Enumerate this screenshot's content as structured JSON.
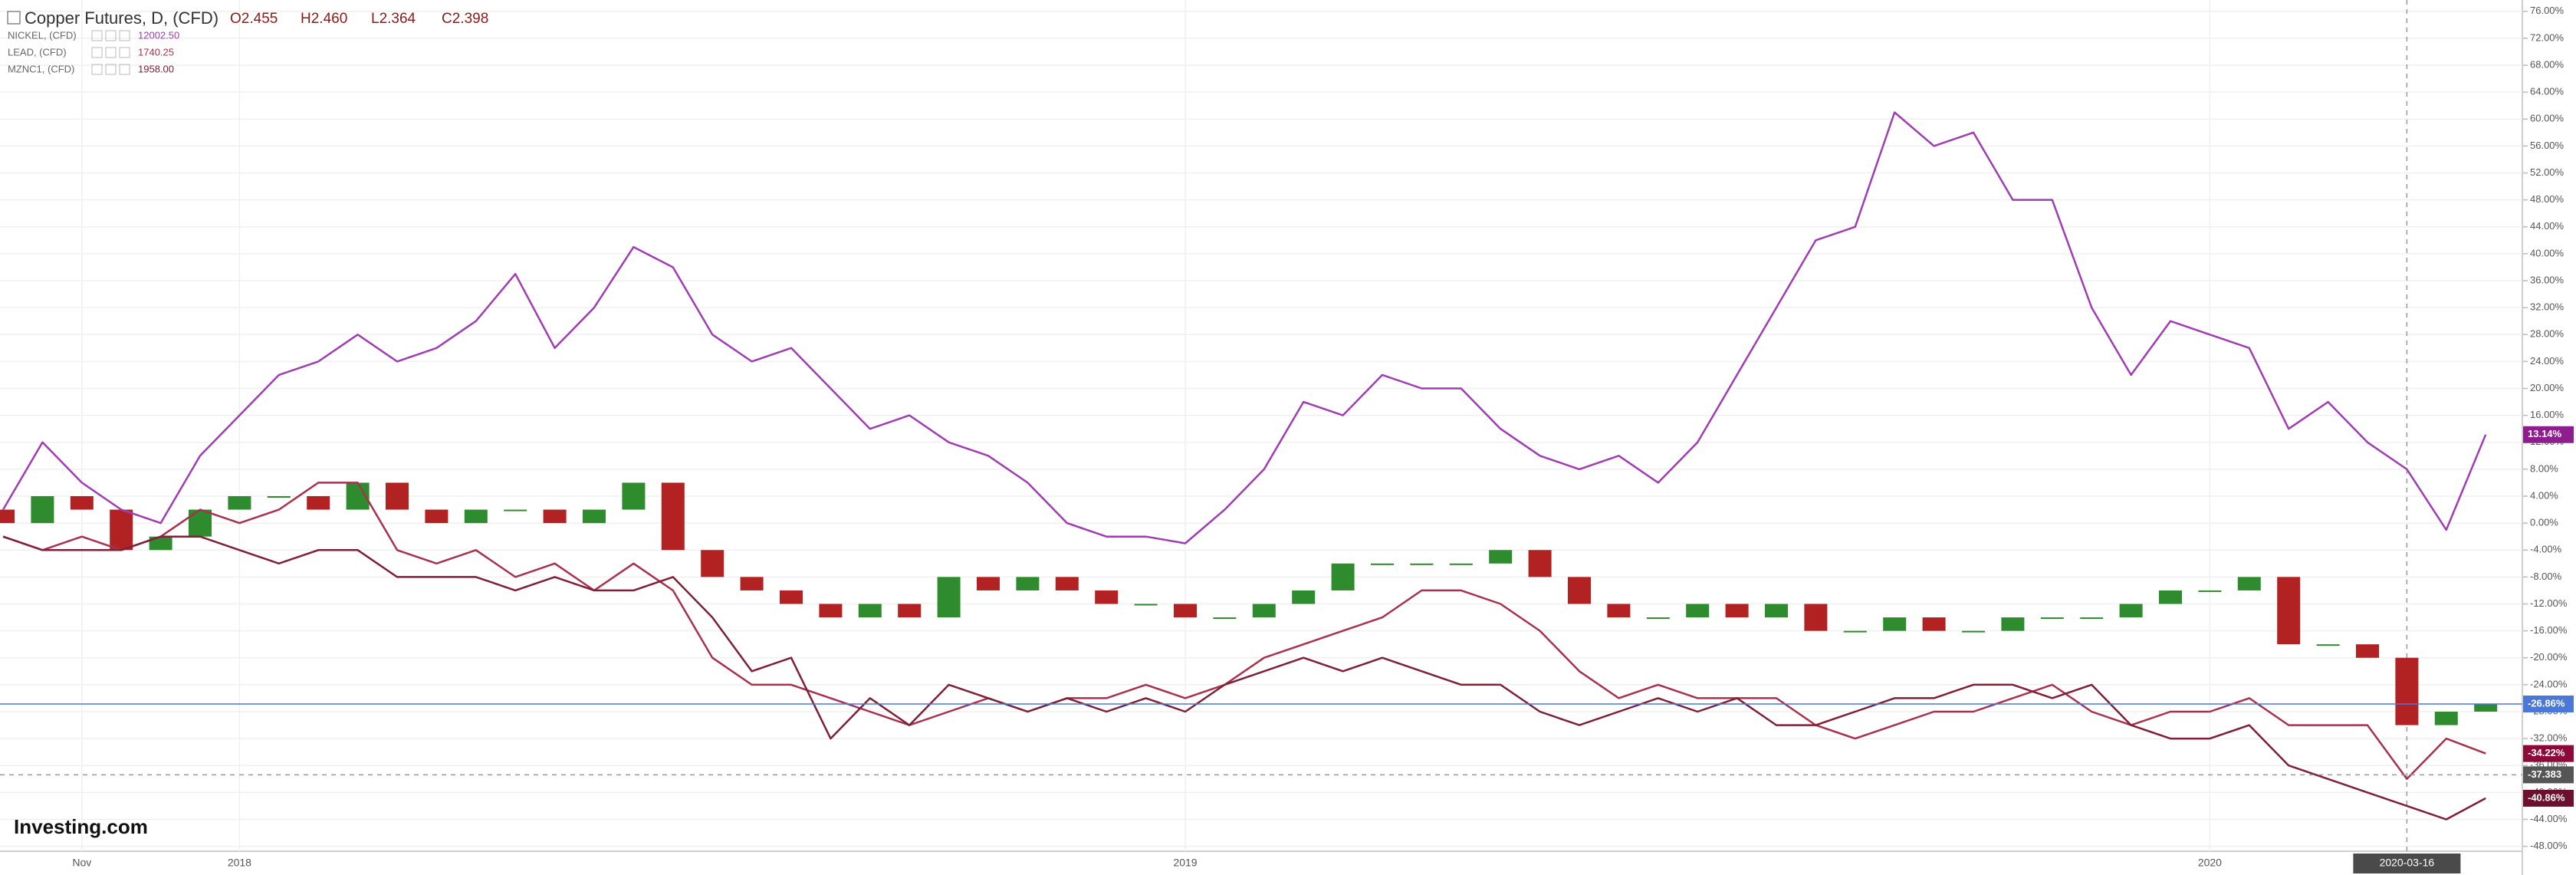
{
  "chart_data": {
    "type": "line",
    "categories": [
      null,
      null,
      "Nov",
      null,
      null,
      null,
      "2018",
      null,
      null,
      null,
      null,
      null,
      null,
      null,
      null,
      null,
      null,
      null,
      null,
      null,
      null,
      null,
      null,
      null,
      null,
      null,
      null,
      null,
      null,
      null,
      "2019",
      null,
      null,
      null,
      null,
      null,
      null,
      null,
      null,
      null,
      null,
      null,
      null,
      null,
      null,
      null,
      null,
      null,
      null,
      null,
      null,
      null,
      null,
      null,
      null,
      null,
      "2020",
      null,
      null,
      null,
      null,
      "2020-03-16",
      null,
      null
    ],
    "crosshair_category": 61,
    "candles": {
      "name": "Copper Futures, D, (CFD)",
      "ohlc_labels": [
        "O2.455",
        "H2.460",
        "L2.364",
        "C2.398"
      ],
      "up_color": "#2e8b2e",
      "down_color": "#b22222",
      "open": [
        2,
        0,
        4,
        2,
        -4,
        -2,
        2,
        4,
        4,
        2,
        6,
        2,
        0,
        2,
        2,
        0,
        2,
        6,
        -4,
        -8,
        -10,
        -12,
        -14,
        -12,
        -14,
        -8,
        -10,
        -8,
        -10,
        -12,
        -12,
        -14,
        -14,
        -12,
        -10,
        -6,
        -6,
        -6,
        -6,
        -4,
        -8,
        -12,
        -14,
        -14,
        -12,
        -14,
        -12,
        -16,
        -16,
        -14,
        -16,
        -16,
        -14,
        -14,
        -14,
        -12,
        -10,
        -10,
        -8,
        -18,
        -18,
        -20,
        -30,
        -28
      ],
      "values": [
        0,
        4,
        2,
        -4,
        -2,
        2,
        4,
        4,
        2,
        6,
        2,
        0,
        2,
        2,
        0,
        2,
        6,
        -4,
        -8,
        -10,
        -12,
        -14,
        -12,
        -14,
        -8,
        -10,
        -8,
        -10,
        -12,
        -12,
        -14,
        -14,
        -12,
        -10,
        -6,
        -6,
        -6,
        -6,
        -4,
        -8,
        -12,
        -14,
        -14,
        -12,
        -14,
        -12,
        -16,
        -16,
        -14,
        -16,
        -16,
        -14,
        -14,
        -14,
        -12,
        -10,
        -10,
        -8,
        -18,
        -18,
        -20,
        -30,
        -28,
        -26.86
      ]
    },
    "series": [
      {
        "name": "NICKEL, (CFD)",
        "last_price": "12002.50",
        "color": "#a03cb4",
        "values": [
          2,
          12,
          6,
          2,
          0,
          10,
          16,
          22,
          24,
          28,
          24,
          26,
          30,
          37,
          26,
          32,
          41,
          38,
          28,
          24,
          26,
          20,
          14,
          16,
          12,
          10,
          6,
          0,
          -2,
          -2,
          -3,
          2,
          8,
          18,
          16,
          22,
          20,
          20,
          14,
          10,
          8,
          10,
          6,
          12,
          22,
          32,
          42,
          44,
          61,
          56,
          58,
          48,
          48,
          32,
          22,
          30,
          28,
          26,
          14,
          18,
          12,
          8,
          -1,
          13.14
        ]
      },
      {
        "name": "LEAD, (CFD)",
        "last_price": "1740.25",
        "color": "#a8324e",
        "values": [
          -2,
          -4,
          -2,
          -4,
          -2,
          2,
          0,
          2,
          6,
          6,
          -4,
          -6,
          -4,
          -8,
          -6,
          -10,
          -6,
          -10,
          -20,
          -24,
          -24,
          -26,
          -28,
          -30,
          -28,
          -26,
          -28,
          -26,
          -26,
          -24,
          -26,
          -24,
          -20,
          -18,
          -16,
          -14,
          -10,
          -10,
          -12,
          -16,
          -22,
          -26,
          -24,
          -26,
          -26,
          -26,
          -30,
          -32,
          -30,
          -28,
          -28,
          -26,
          -24,
          -28,
          -30,
          -28,
          -28,
          -26,
          -30,
          -30,
          -30,
          -38,
          -32,
          -34.22
        ]
      },
      {
        "name": "MZNC1, (CFD)",
        "last_price": "1958.00",
        "color": "#7d2038",
        "values": [
          -2,
          -4,
          -4,
          -4,
          -2,
          -2,
          -4,
          -6,
          -4,
          -4,
          -8,
          -8,
          -8,
          -10,
          -8,
          -10,
          -10,
          -8,
          -14,
          -22,
          -20,
          -32,
          -26,
          -30,
          -24,
          -26,
          -28,
          -26,
          -28,
          -26,
          -28,
          -24,
          -22,
          -20,
          -22,
          -20,
          -22,
          -24,
          -24,
          -28,
          -30,
          -28,
          -26,
          -28,
          -26,
          -30,
          -30,
          -28,
          -26,
          -26,
          -24,
          -24,
          -26,
          -24,
          -30,
          -32,
          -32,
          -30,
          -36,
          -38,
          -40,
          -42,
          -44,
          -40.86
        ]
      }
    ],
    "price_marks": [
      {
        "value": 13.14,
        "label": "13.14%",
        "color": "#8e1e8e"
      },
      {
        "value": -26.86,
        "label": "-26.86%",
        "color": "#4a78d8"
      },
      {
        "value": -34.22,
        "label": "-34.22%",
        "color": "#8b0a3a"
      },
      {
        "value": -37.383,
        "label": "-37.383",
        "color": "#555555"
      },
      {
        "value": -40.86,
        "label": "-40.86%",
        "color": "#6d1030"
      }
    ],
    "ylim": [
      -48.5,
      77
    ],
    "yticks": [
      {
        "value": 76,
        "label": "76.00%"
      },
      {
        "value": 72,
        "label": "72.00%"
      },
      {
        "value": 68,
        "label": "68.00%"
      },
      {
        "value": 64,
        "label": "64.00%"
      },
      {
        "value": 60,
        "label": "60.00%"
      },
      {
        "value": 56,
        "label": "56.00%"
      },
      {
        "value": 52,
        "label": "52.00%"
      },
      {
        "value": 48,
        "label": "48.00%"
      },
      {
        "value": 44,
        "label": "44.00%"
      },
      {
        "value": 40,
        "label": "40.00%"
      },
      {
        "value": 36,
        "label": "36.00%"
      },
      {
        "value": 32,
        "label": "32.00%"
      },
      {
        "value": 28,
        "label": "28.00%"
      },
      {
        "value": 24,
        "label": "24.00%"
      },
      {
        "value": 20,
        "label": "20.00%"
      },
      {
        "value": 16,
        "label": "16.00%"
      },
      {
        "value": 12,
        "label": "12.00%"
      },
      {
        "value": 8,
        "label": "8.00%"
      },
      {
        "value": 4,
        "label": "4.00%"
      },
      {
        "value": 0,
        "label": "0.00%"
      },
      {
        "value": -4,
        "label": "-4.00%"
      },
      {
        "value": -8,
        "label": "-8.00%"
      },
      {
        "value": -12,
        "label": "-12.00%"
      },
      {
        "value": -16,
        "label": "-16.00%"
      },
      {
        "value": -20,
        "label": "-20.00%"
      },
      {
        "value": -24,
        "label": "-24.00%"
      },
      {
        "value": -28,
        "label": "-28.00%"
      },
      {
        "value": -32,
        "label": "-32.00%"
      },
      {
        "value": -36,
        "label": "-36.00%"
      },
      {
        "value": -40,
        "label": "-40.00%"
      },
      {
        "value": -44,
        "label": "-44.00%"
      },
      {
        "value": -48,
        "label": "-48.00%"
      }
    ],
    "grid": true,
    "logo": "Investing.com"
  }
}
